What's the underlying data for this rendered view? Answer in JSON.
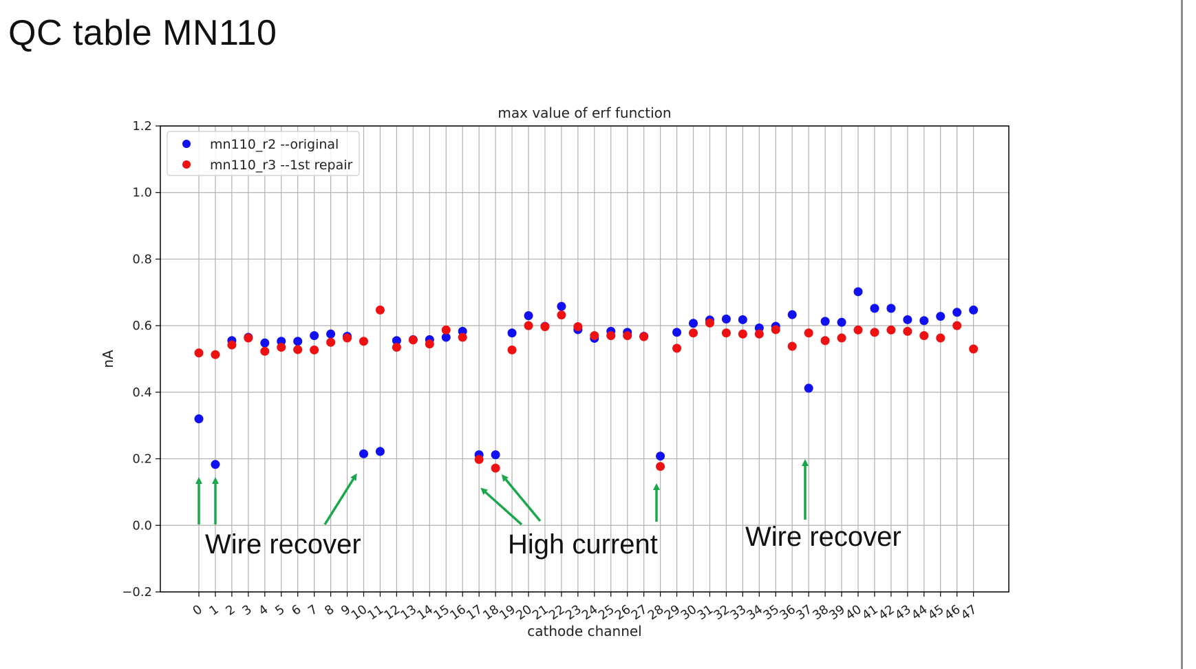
{
  "slide": {
    "title": "QC table MN110"
  },
  "colors": {
    "series_r2": "#1010f0",
    "series_r3": "#ee1111",
    "arrow": "#1aa74a",
    "grid": "#b0b0b0"
  },
  "chart_data": {
    "type": "scatter",
    "title": "max value of erf function",
    "xlabel": "cathode channel",
    "ylabel": "nA",
    "ylim": [
      -0.2,
      1.2
    ],
    "yticks": [
      "−0.2",
      "0.0",
      "0.2",
      "0.4",
      "0.6",
      "0.8",
      "1.0",
      "1.2"
    ],
    "ytick_values": [
      -0.2,
      0.0,
      0.2,
      0.4,
      0.6,
      0.8,
      1.0,
      1.2
    ],
    "x": [
      "0",
      "1",
      "2",
      "3",
      "4",
      "5",
      "6",
      "7",
      "8",
      "9",
      "10",
      "11",
      "12",
      "13",
      "14",
      "15",
      "16",
      "17",
      "18",
      "19",
      "20",
      "21",
      "22",
      "23",
      "24",
      "25",
      "26",
      "27",
      "28",
      "29",
      "30",
      "31",
      "32",
      "33",
      "34",
      "35",
      "36",
      "37",
      "38",
      "39",
      "40",
      "41",
      "42",
      "43",
      "44",
      "45",
      "46",
      "47"
    ],
    "grid": true,
    "legend_position": "upper-left",
    "series": [
      {
        "name": "mn110_r2 --original",
        "values": [
          0.32,
          0.183,
          0.555,
          0.565,
          0.548,
          0.553,
          0.553,
          0.57,
          0.575,
          0.568,
          0.215,
          0.222,
          0.555,
          0.558,
          0.558,
          0.565,
          0.583,
          0.212,
          0.212,
          0.578,
          0.63,
          0.598,
          0.658,
          0.588,
          0.562,
          0.583,
          0.58,
          0.568,
          0.208,
          0.58,
          0.607,
          0.617,
          0.62,
          0.618,
          0.593,
          0.598,
          0.633,
          0.412,
          0.613,
          0.61,
          0.702,
          0.652,
          0.652,
          0.618,
          0.615,
          0.628,
          0.64,
          0.647
        ]
      },
      {
        "name": "mn110_r3 --1st repair",
        "values": [
          0.518,
          0.513,
          0.542,
          0.563,
          0.523,
          0.535,
          0.528,
          0.527,
          0.55,
          0.563,
          0.553,
          0.647,
          0.535,
          0.557,
          0.545,
          0.587,
          0.565,
          0.198,
          0.172,
          0.527,
          0.6,
          0.597,
          0.632,
          0.597,
          0.57,
          0.57,
          0.57,
          0.567,
          0.177,
          0.532,
          0.578,
          0.608,
          0.578,
          0.575,
          0.575,
          0.588,
          0.538,
          0.578,
          0.555,
          0.563,
          0.587,
          0.58,
          0.587,
          0.583,
          0.57,
          0.563,
          0.6,
          0.53
        ]
      }
    ],
    "annotations": [
      {
        "label": "Wire recover"
      },
      {
        "label": "High current"
      },
      {
        "label": "Wire recover"
      }
    ]
  }
}
